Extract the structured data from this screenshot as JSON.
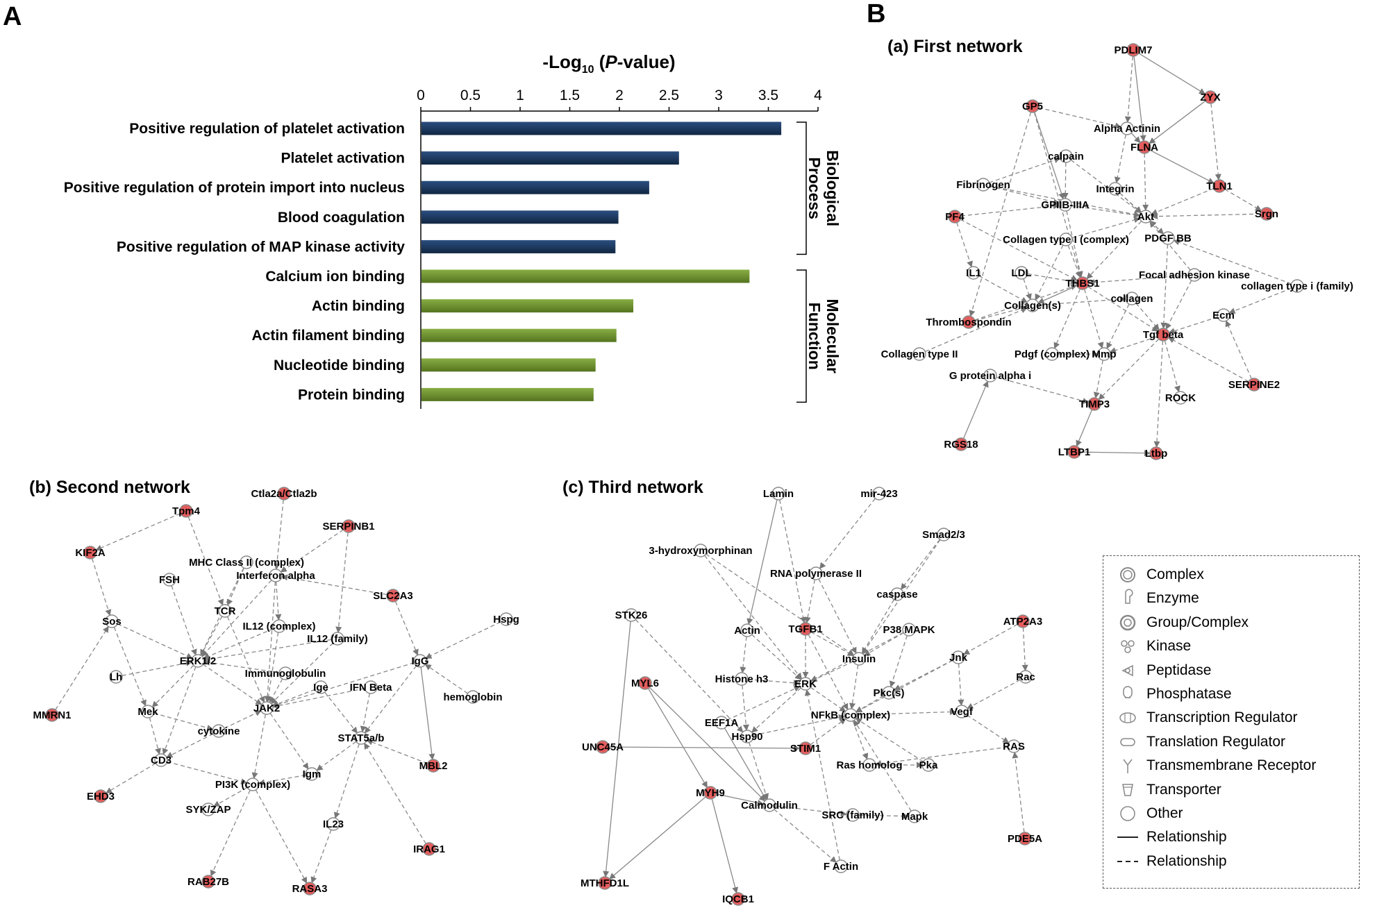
{
  "panel_a_label": "A",
  "panel_b_label": "B",
  "chart_data": {
    "type": "bar",
    "orientation": "horizontal",
    "title": "-Log10 (P-value)",
    "title_parts": {
      "prefix": "-Log",
      "sub": "10",
      "mid": " (",
      "italic": "P",
      "suffix": "-value)"
    },
    "xlim": [
      0,
      4
    ],
    "ticks": [
      "0",
      "0.5",
      "1",
      "1.5",
      "2",
      "2.5",
      "3",
      "3.5",
      "4"
    ],
    "tick_values": [
      0,
      0.5,
      1,
      1.5,
      2,
      2.5,
      3,
      3.5,
      4
    ],
    "categories": [
      "Positive regulation of platelet activation",
      "Platelet activation",
      "Positive regulation of protein import into nucleus",
      "Blood coagulation",
      "Positive regulation of MAP kinase activity",
      "Calcium ion binding",
      "Actin binding",
      "Actin filament binding",
      "Nucleotide binding",
      "Protein binding"
    ],
    "values": [
      3.63,
      2.6,
      2.3,
      1.99,
      1.96,
      3.31,
      2.14,
      1.97,
      1.76,
      1.74
    ],
    "groups": [
      {
        "name": "Biological Process",
        "lines": [
          "Biological",
          "Process"
        ],
        "start": 0,
        "end": 4,
        "color": "#1c3a63"
      },
      {
        "name": "Molecular Function",
        "lines": [
          "Molecular",
          "Function"
        ],
        "start": 5,
        "end": 9,
        "color": "#6d9130"
      }
    ]
  },
  "networks": [
    {
      "title": "(a) First network",
      "nodes": [
        {
          "label": "PDLIM7",
          "hl": true
        },
        {
          "label": "ZYX",
          "hl": true
        },
        {
          "label": "GP5",
          "hl": true
        },
        {
          "label": "Alpha Actinin",
          "hl": false
        },
        {
          "label": "FLNA",
          "hl": true
        },
        {
          "label": "calpain",
          "hl": false
        },
        {
          "label": "Fibrinogen",
          "hl": false
        },
        {
          "label": "Integrin",
          "hl": false
        },
        {
          "label": "TLN1",
          "hl": true
        },
        {
          "label": "PF4",
          "hl": true
        },
        {
          "label": "GPIIB-IIIA",
          "hl": false
        },
        {
          "label": "Akt",
          "hl": false
        },
        {
          "label": "Srgn",
          "hl": true
        },
        {
          "label": "Collagen type I (complex)",
          "hl": false
        },
        {
          "label": "PDGF BB",
          "hl": false
        },
        {
          "label": "IL1",
          "hl": false
        },
        {
          "label": "LDL",
          "hl": false
        },
        {
          "label": "THBS1",
          "hl": true
        },
        {
          "label": "Focal adhesion kinase",
          "hl": false
        },
        {
          "label": "collagen type i (family)",
          "hl": false
        },
        {
          "label": "Collagen(s)",
          "hl": false
        },
        {
          "label": "collagen",
          "hl": false
        },
        {
          "label": "Thrombospondin",
          "hl": true
        },
        {
          "label": "Ecm",
          "hl": false
        },
        {
          "label": "Tgf beta",
          "hl": true
        },
        {
          "label": "Collagen type II",
          "hl": false
        },
        {
          "label": "Pdgf (complex)",
          "hl": false
        },
        {
          "label": "Mmp",
          "hl": false
        },
        {
          "label": "G protein alpha i",
          "hl": false
        },
        {
          "label": "ROCK",
          "hl": false
        },
        {
          "label": "SERPINE2",
          "hl": true
        },
        {
          "label": "TIMP3",
          "hl": true
        },
        {
          "label": "RGS18",
          "hl": true
        },
        {
          "label": "LTBP1",
          "hl": true
        },
        {
          "label": "Ltbp",
          "hl": true
        }
      ]
    },
    {
      "title": "(b) Second network",
      "nodes": [
        {
          "label": "Ctla2a/Ctla2b",
          "hl": true
        },
        {
          "label": "Tpm4",
          "hl": true
        },
        {
          "label": "SERPINB1",
          "hl": true
        },
        {
          "label": "KIF2A",
          "hl": true
        },
        {
          "label": "MHC Class II (complex)",
          "hl": false
        },
        {
          "label": "FSH",
          "hl": false
        },
        {
          "label": "Interferon alpha",
          "hl": false
        },
        {
          "label": "SLC2A3",
          "hl": true
        },
        {
          "label": "Hspg",
          "hl": false
        },
        {
          "label": "Sos",
          "hl": false
        },
        {
          "label": "TCR",
          "hl": false
        },
        {
          "label": "IL12 (complex)",
          "hl": false
        },
        {
          "label": "IL12 (family)",
          "hl": false
        },
        {
          "label": "ERK1/2",
          "hl": false
        },
        {
          "label": "IgG",
          "hl": false
        },
        {
          "label": "Lh",
          "hl": false
        },
        {
          "label": "Immunoglobulin",
          "hl": false
        },
        {
          "label": "Ige",
          "hl": false
        },
        {
          "label": "IFN Beta",
          "hl": false
        },
        {
          "label": "hemoglobin",
          "hl": false
        },
        {
          "label": "MMRN1",
          "hl": true
        },
        {
          "label": "Mek",
          "hl": false
        },
        {
          "label": "JAK2",
          "hl": false
        },
        {
          "label": "cytokine",
          "hl": false
        },
        {
          "label": "STAT5a/b",
          "hl": false
        },
        {
          "label": "CD3",
          "hl": false
        },
        {
          "label": "MBL2",
          "hl": true
        },
        {
          "label": "Igm",
          "hl": false
        },
        {
          "label": "PI3K (complex)",
          "hl": false
        },
        {
          "label": "EHD3",
          "hl": true
        },
        {
          "label": "SYK/ZAP",
          "hl": false
        },
        {
          "label": "IL23",
          "hl": false
        },
        {
          "label": "IRAG1",
          "hl": true
        },
        {
          "label": "RAB27B",
          "hl": true
        },
        {
          "label": "RASA3",
          "hl": true
        }
      ]
    },
    {
      "title": "(c) Third network",
      "nodes": [
        {
          "label": "Lamin",
          "hl": false
        },
        {
          "label": "mir-423",
          "hl": false
        },
        {
          "label": "Smad2/3",
          "hl": false
        },
        {
          "label": "3-hydroxymorphinan",
          "hl": false
        },
        {
          "label": "RNA polymerase II",
          "hl": false
        },
        {
          "label": "caspase",
          "hl": false
        },
        {
          "label": "STK26",
          "hl": false
        },
        {
          "label": "ATP2A3",
          "hl": true
        },
        {
          "label": "Actin",
          "hl": false
        },
        {
          "label": "TGFB1",
          "hl": true
        },
        {
          "label": "P38 MAPK",
          "hl": false
        },
        {
          "label": "Insulin",
          "hl": false
        },
        {
          "label": "Jnk",
          "hl": false
        },
        {
          "label": "Histone h3",
          "hl": false
        },
        {
          "label": "Rac",
          "hl": false
        },
        {
          "label": "ERK",
          "hl": false
        },
        {
          "label": "MYL6",
          "hl": true
        },
        {
          "label": "Pkc(s)",
          "hl": false
        },
        {
          "label": "NFkB (complex)",
          "hl": false
        },
        {
          "label": "Vegf",
          "hl": false
        },
        {
          "label": "EEF1A",
          "hl": false
        },
        {
          "label": "Hsp90",
          "hl": false
        },
        {
          "label": "UNC45A",
          "hl": true
        },
        {
          "label": "STIM1",
          "hl": true
        },
        {
          "label": "RAS",
          "hl": false
        },
        {
          "label": "Ras homolog",
          "hl": false
        },
        {
          "label": "Pka",
          "hl": false
        },
        {
          "label": "MYH9",
          "hl": true
        },
        {
          "label": "Calmodulin",
          "hl": false
        },
        {
          "label": "SRC (family)",
          "hl": false
        },
        {
          "label": "Mapk",
          "hl": false
        },
        {
          "label": "PDE5A",
          "hl": true
        },
        {
          "label": "F Actin",
          "hl": false
        },
        {
          "label": "MTHFD1L",
          "hl": true
        },
        {
          "label": "IQCB1",
          "hl": true
        }
      ]
    }
  ],
  "legend": {
    "items": [
      {
        "label": "Complex",
        "icon": "complex-icon"
      },
      {
        "label": "Enzyme",
        "icon": "enzyme-icon"
      },
      {
        "label": "Group/Complex",
        "icon": "group-complex-icon"
      },
      {
        "label": "Kinase",
        "icon": "kinase-icon"
      },
      {
        "label": "Peptidase",
        "icon": "peptidase-icon"
      },
      {
        "label": "Phosphatase",
        "icon": "phosphatase-icon"
      },
      {
        "label": "Transcription Regulator",
        "icon": "transcription-regulator-icon"
      },
      {
        "label": "Translation Regulator",
        "icon": "translation-regulator-icon"
      },
      {
        "label": "Transmembrane Receptor",
        "icon": "transmembrane-receptor-icon"
      },
      {
        "label": "Transporter",
        "icon": "transporter-icon"
      },
      {
        "label": "Other",
        "icon": "other-icon"
      },
      {
        "label": "Relationship",
        "icon": "solid-line-icon"
      },
      {
        "label": "Relationship",
        "icon": "dashed-line-icon"
      }
    ]
  },
  "colors": {
    "bp_bar": "#1c3a63",
    "mf_bar": "#6d9130",
    "highlight": "#e35d5d",
    "edge": "#808080"
  }
}
